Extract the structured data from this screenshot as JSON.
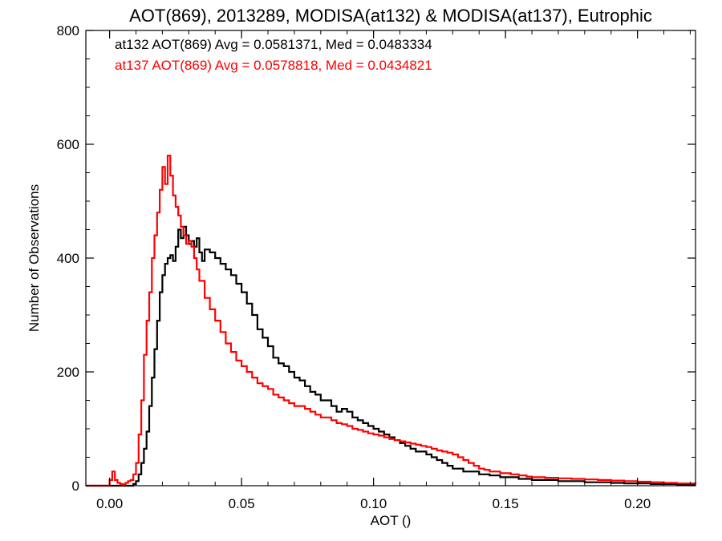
{
  "chart_data": {
    "type": "line",
    "title": "AOT(869), 2013289, MODISA(at132) & MODISA(at137), Eutrophic",
    "xlabel": "AOT ()",
    "ylabel": "Number of Observations",
    "xlim": [
      -0.009,
      0.222
    ],
    "ylim": [
      0,
      800
    ],
    "x_ticks": [
      "0.00",
      "0.05",
      "0.10",
      "0.15",
      "0.20"
    ],
    "x_tick_values": [
      0.0,
      0.05,
      0.1,
      0.15,
      0.2
    ],
    "y_ticks": [
      "0",
      "200",
      "400",
      "600",
      "800"
    ],
    "y_tick_values": [
      0,
      200,
      400,
      600,
      800
    ],
    "grid": false,
    "legend_position": "top-left",
    "series": [
      {
        "name": "at132 AOT(869) Avg = 0.0581371, Med = 0.0483334",
        "color": "#000000",
        "x": [
          -0.009,
          0.0,
          0.009,
          0.01,
          0.011,
          0.012,
          0.013,
          0.014,
          0.015,
          0.016,
          0.017,
          0.018,
          0.019,
          0.02,
          0.021,
          0.022,
          0.023,
          0.024,
          0.025,
          0.026,
          0.027,
          0.028,
          0.029,
          0.03,
          0.031,
          0.032,
          0.033,
          0.034,
          0.035,
          0.036,
          0.038,
          0.04,
          0.042,
          0.044,
          0.046,
          0.048,
          0.05,
          0.052,
          0.054,
          0.056,
          0.058,
          0.06,
          0.062,
          0.064,
          0.066,
          0.068,
          0.07,
          0.072,
          0.074,
          0.076,
          0.078,
          0.08,
          0.082,
          0.084,
          0.086,
          0.088,
          0.09,
          0.092,
          0.094,
          0.096,
          0.098,
          0.1,
          0.102,
          0.104,
          0.106,
          0.108,
          0.11,
          0.112,
          0.114,
          0.116,
          0.118,
          0.12,
          0.122,
          0.124,
          0.126,
          0.128,
          0.13,
          0.132,
          0.134,
          0.136,
          0.138,
          0.14,
          0.142,
          0.144,
          0.146,
          0.148,
          0.15,
          0.152,
          0.155,
          0.158,
          0.16,
          0.165,
          0.17,
          0.175,
          0.18,
          0.185,
          0.19,
          0.195,
          0.2,
          0.205,
          0.21,
          0.215,
          0.222
        ],
        "y": [
          0,
          0,
          3,
          8,
          20,
          40,
          65,
          95,
          140,
          190,
          240,
          290,
          340,
          370,
          390,
          400,
          405,
          395,
          420,
          450,
          435,
          455,
          440,
          425,
          430,
          420,
          435,
          410,
          395,
          415,
          410,
          400,
          390,
          380,
          370,
          355,
          340,
          320,
          300,
          275,
          260,
          245,
          225,
          215,
          210,
          200,
          190,
          185,
          175,
          165,
          160,
          150,
          150,
          140,
          130,
          135,
          130,
          120,
          115,
          110,
          105,
          100,
          95,
          90,
          85,
          80,
          75,
          70,
          65,
          60,
          60,
          55,
          50,
          45,
          40,
          35,
          30,
          30,
          25,
          25,
          25,
          20,
          20,
          18,
          18,
          15,
          15,
          15,
          12,
          12,
          10,
          10,
          8,
          8,
          6,
          6,
          5,
          4,
          4,
          3,
          3,
          2,
          2
        ]
      },
      {
        "name": "at137 AOT(869) Avg = 0.0578818, Med = 0.0434821",
        "color": "#ff0000",
        "x": [
          -0.009,
          -0.001,
          0.0,
          0.001,
          0.002,
          0.003,
          0.004,
          0.005,
          0.006,
          0.007,
          0.008,
          0.009,
          0.01,
          0.011,
          0.012,
          0.013,
          0.014,
          0.015,
          0.016,
          0.017,
          0.018,
          0.019,
          0.02,
          0.021,
          0.022,
          0.023,
          0.024,
          0.025,
          0.026,
          0.027,
          0.028,
          0.029,
          0.03,
          0.031,
          0.032,
          0.033,
          0.034,
          0.036,
          0.038,
          0.04,
          0.042,
          0.044,
          0.046,
          0.048,
          0.05,
          0.052,
          0.054,
          0.056,
          0.058,
          0.06,
          0.062,
          0.064,
          0.066,
          0.068,
          0.07,
          0.072,
          0.074,
          0.076,
          0.078,
          0.08,
          0.082,
          0.084,
          0.086,
          0.088,
          0.09,
          0.092,
          0.094,
          0.096,
          0.098,
          0.1,
          0.102,
          0.104,
          0.106,
          0.108,
          0.11,
          0.112,
          0.114,
          0.116,
          0.118,
          0.12,
          0.122,
          0.124,
          0.126,
          0.128,
          0.13,
          0.132,
          0.134,
          0.136,
          0.138,
          0.14,
          0.142,
          0.144,
          0.146,
          0.148,
          0.15,
          0.152,
          0.155,
          0.158,
          0.16,
          0.165,
          0.17,
          0.175,
          0.18,
          0.185,
          0.19,
          0.195,
          0.2,
          0.205,
          0.21,
          0.215,
          0.222
        ],
        "y": [
          0,
          0,
          10,
          25,
          10,
          5,
          3,
          2,
          5,
          8,
          10,
          20,
          40,
          90,
          150,
          230,
          290,
          340,
          400,
          440,
          480,
          520,
          560,
          530,
          580,
          545,
          510,
          490,
          475,
          455,
          440,
          425,
          430,
          420,
          400,
          380,
          360,
          330,
          310,
          290,
          270,
          250,
          235,
          220,
          210,
          200,
          190,
          180,
          175,
          170,
          160,
          155,
          150,
          145,
          140,
          140,
          135,
          130,
          125,
          120,
          120,
          115,
          110,
          108,
          105,
          100,
          98,
          95,
          92,
          90,
          88,
          85,
          82,
          80,
          78,
          76,
          74,
          72,
          70,
          68,
          65,
          62,
          60,
          58,
          55,
          50,
          45,
          40,
          35,
          30,
          28,
          25,
          25,
          22,
          22,
          20,
          18,
          16,
          15,
          14,
          13,
          12,
          11,
          10,
          9,
          8,
          7,
          6,
          5,
          4,
          3
        ]
      }
    ]
  }
}
